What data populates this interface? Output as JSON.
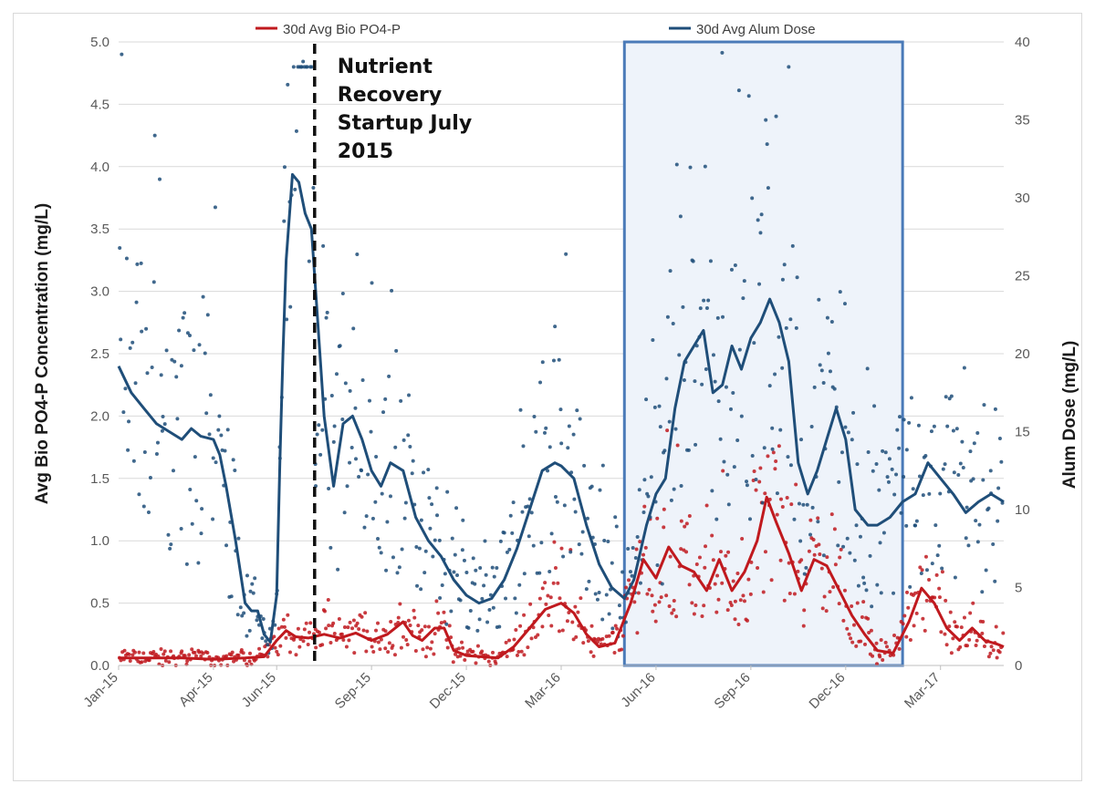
{
  "chart_data": {
    "type": "line",
    "title": "",
    "ylabel": "Avg Bio PO4-P Concentration (mg/L)",
    "y2label": "Alum Dose (mg/L)",
    "ylim": [
      0,
      5
    ],
    "y2lim": [
      0,
      40
    ],
    "yticks": [
      "0.0",
      "0.5",
      "1.0",
      "1.5",
      "2.0",
      "2.5",
      "3.0",
      "3.5",
      "4.0",
      "4.5",
      "5.0"
    ],
    "y2ticks": [
      "0",
      "5",
      "10",
      "15",
      "20",
      "25",
      "30",
      "35",
      "40"
    ],
    "xlim": [
      0,
      28
    ],
    "xticks": [
      {
        "label": "Jan-15",
        "month": 0
      },
      {
        "label": "Apr-15",
        "month": 3
      },
      {
        "label": "Jun-15",
        "month": 5
      },
      {
        "label": "Sep-15",
        "month": 8
      },
      {
        "label": "Dec-15",
        "month": 11
      },
      {
        "label": "Mar-16",
        "month": 14
      },
      {
        "label": "Jun-16",
        "month": 17
      },
      {
        "label": "Sep-16",
        "month": 20
      },
      {
        "label": "Dec-16",
        "month": 23
      },
      {
        "label": "Mar-17",
        "month": 26
      }
    ],
    "grid": true,
    "legend_position": "top",
    "series": [
      {
        "name": "30d Avg Bio PO4-P",
        "axis": "left",
        "color": "#c0191e",
        "points": [
          [
            0.0,
            0.06
          ],
          [
            1.0,
            0.06
          ],
          [
            2.0,
            0.06
          ],
          [
            3.0,
            0.05
          ],
          [
            4.0,
            0.06
          ],
          [
            4.6,
            0.07
          ],
          [
            5.0,
            0.2
          ],
          [
            5.3,
            0.28
          ],
          [
            5.6,
            0.23
          ],
          [
            6.0,
            0.22
          ],
          [
            6.5,
            0.25
          ],
          [
            7.0,
            0.22
          ],
          [
            7.5,
            0.26
          ],
          [
            8.0,
            0.2
          ],
          [
            8.5,
            0.25
          ],
          [
            9.0,
            0.35
          ],
          [
            9.3,
            0.24
          ],
          [
            9.6,
            0.2
          ],
          [
            10.0,
            0.3
          ],
          [
            10.3,
            0.3
          ],
          [
            10.6,
            0.12
          ],
          [
            11.0,
            0.08
          ],
          [
            12.0,
            0.06
          ],
          [
            12.5,
            0.15
          ],
          [
            13.0,
            0.3
          ],
          [
            13.5,
            0.45
          ],
          [
            14.0,
            0.5
          ],
          [
            14.4,
            0.42
          ],
          [
            14.8,
            0.25
          ],
          [
            15.2,
            0.15
          ],
          [
            15.7,
            0.18
          ],
          [
            16.2,
            0.5
          ],
          [
            16.6,
            0.85
          ],
          [
            17.0,
            0.7
          ],
          [
            17.4,
            0.95
          ],
          [
            17.8,
            0.8
          ],
          [
            18.2,
            0.75
          ],
          [
            18.6,
            0.6
          ],
          [
            19.0,
            0.85
          ],
          [
            19.4,
            0.6
          ],
          [
            19.8,
            0.75
          ],
          [
            20.2,
            1.0
          ],
          [
            20.5,
            1.35
          ],
          [
            20.8,
            1.15
          ],
          [
            21.2,
            0.9
          ],
          [
            21.6,
            0.6
          ],
          [
            22.0,
            0.85
          ],
          [
            22.4,
            0.8
          ],
          [
            22.8,
            0.6
          ],
          [
            23.2,
            0.4
          ],
          [
            23.6,
            0.25
          ],
          [
            24.0,
            0.12
          ],
          [
            24.5,
            0.1
          ],
          [
            25.0,
            0.35
          ],
          [
            25.4,
            0.62
          ],
          [
            25.8,
            0.5
          ],
          [
            26.2,
            0.3
          ],
          [
            26.6,
            0.2
          ],
          [
            27.0,
            0.3
          ],
          [
            27.4,
            0.2
          ],
          [
            27.8,
            0.17
          ],
          [
            28.0,
            0.15
          ]
        ]
      },
      {
        "name": "30d Avg Alum Dose",
        "axis": "right",
        "color": "#1f4e79",
        "points": [
          [
            0.0,
            19.2
          ],
          [
            0.4,
            17.5
          ],
          [
            0.8,
            16.5
          ],
          [
            1.2,
            15.5
          ],
          [
            1.6,
            15.0
          ],
          [
            2.0,
            14.5
          ],
          [
            2.3,
            15.2
          ],
          [
            2.6,
            14.7
          ],
          [
            3.0,
            14.5
          ],
          [
            3.2,
            13.5
          ],
          [
            3.4,
            11.5
          ],
          [
            3.7,
            8.0
          ],
          [
            4.0,
            4.0
          ],
          [
            4.2,
            3.5
          ],
          [
            4.4,
            3.5
          ],
          [
            4.6,
            2.0
          ],
          [
            4.8,
            1.5
          ],
          [
            5.0,
            4.5
          ],
          [
            5.1,
            13.0
          ],
          [
            5.2,
            20.0
          ],
          [
            5.3,
            26.0
          ],
          [
            5.5,
            31.5
          ],
          [
            5.7,
            31.0
          ],
          [
            5.9,
            29.0
          ],
          [
            6.1,
            28.0
          ],
          [
            6.3,
            22.0
          ],
          [
            6.5,
            16.0
          ],
          [
            6.8,
            11.5
          ],
          [
            7.1,
            15.5
          ],
          [
            7.4,
            16.0
          ],
          [
            7.7,
            14.5
          ],
          [
            8.0,
            12.5
          ],
          [
            8.3,
            11.5
          ],
          [
            8.6,
            13.0
          ],
          [
            9.0,
            12.5
          ],
          [
            9.4,
            9.5
          ],
          [
            9.8,
            8.0
          ],
          [
            10.2,
            7.0
          ],
          [
            10.6,
            5.5
          ],
          [
            11.0,
            4.5
          ],
          [
            11.4,
            4.0
          ],
          [
            11.8,
            4.3
          ],
          [
            12.2,
            5.5
          ],
          [
            12.6,
            7.5
          ],
          [
            13.0,
            10.0
          ],
          [
            13.4,
            12.5
          ],
          [
            13.8,
            13.0
          ],
          [
            14.0,
            12.8
          ],
          [
            14.4,
            12.0
          ],
          [
            14.8,
            9.0
          ],
          [
            15.2,
            6.5
          ],
          [
            15.6,
            5.0
          ],
          [
            16.0,
            4.3
          ],
          [
            16.3,
            5.5
          ],
          [
            16.7,
            9.0
          ],
          [
            17.0,
            11.0
          ],
          [
            17.3,
            12.0
          ],
          [
            17.6,
            16.5
          ],
          [
            17.9,
            19.5
          ],
          [
            18.2,
            20.5
          ],
          [
            18.5,
            21.5
          ],
          [
            18.8,
            17.5
          ],
          [
            19.1,
            18.0
          ],
          [
            19.4,
            20.5
          ],
          [
            19.7,
            19.0
          ],
          [
            20.0,
            21.0
          ],
          [
            20.3,
            22.0
          ],
          [
            20.6,
            23.5
          ],
          [
            20.9,
            22.0
          ],
          [
            21.2,
            19.5
          ],
          [
            21.5,
            13.0
          ],
          [
            21.8,
            11.0
          ],
          [
            22.1,
            12.5
          ],
          [
            22.4,
            14.5
          ],
          [
            22.7,
            16.5
          ],
          [
            23.0,
            14.5
          ],
          [
            23.3,
            10.0
          ],
          [
            23.7,
            9.0
          ],
          [
            24.0,
            9.0
          ],
          [
            24.4,
            9.5
          ],
          [
            24.8,
            10.5
          ],
          [
            25.2,
            11.0
          ],
          [
            25.6,
            13.0
          ],
          [
            26.0,
            12.0
          ],
          [
            26.4,
            11.0
          ],
          [
            26.8,
            9.8
          ],
          [
            27.2,
            10.5
          ],
          [
            27.6,
            11.0
          ],
          [
            28.0,
            10.5
          ]
        ]
      }
    ],
    "scatter_series": [
      {
        "axis": "left",
        "color": "#c0191e",
        "of_series": "30d Avg Bio PO4-P"
      },
      {
        "axis": "right",
        "color": "#1f4e79",
        "of_series": "30d Avg Alum Dose"
      }
    ],
    "annotations": {
      "startup_text": [
        "Nutrient",
        "Recovery",
        "Startup July",
        "2015"
      ],
      "startup_month": 6.2,
      "highlight_box_months": [
        16.0,
        24.8
      ],
      "highlight_fill": "#eef3fa",
      "highlight_border": "#4a7ab8"
    }
  }
}
